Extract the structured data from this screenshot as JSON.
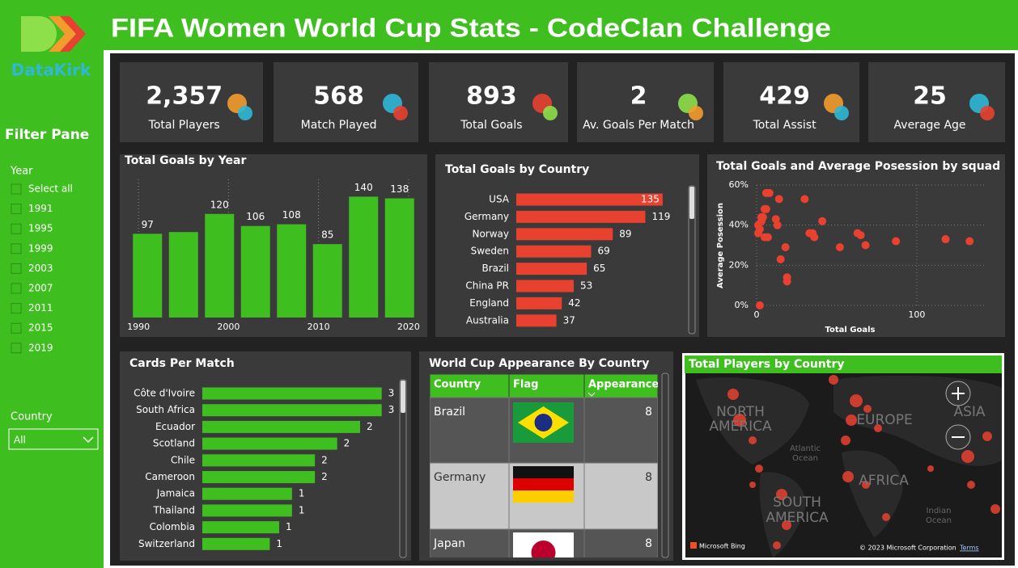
{
  "header": {
    "title": "FIFA Women World Cup Stats - CodeClan Challenge"
  },
  "sidebar": {
    "logo": "DataKirk",
    "filter_title": "Filter Pane",
    "year_label": "Year",
    "year_options": [
      "Select all",
      "1991",
      "1995",
      "1999",
      "2003",
      "2007",
      "2011",
      "2015",
      "2019"
    ],
    "country_label": "Country",
    "country_value": "All"
  },
  "kpis": [
    {
      "value": "2,357",
      "label": "Total Players"
    },
    {
      "value": "568",
      "label": "Match Played"
    },
    {
      "value": "893",
      "label": "Total Goals"
    },
    {
      "value": "2",
      "label": "Av. Goals Per Match"
    },
    {
      "value": "429",
      "label": "Total Assist"
    },
    {
      "value": "25",
      "label": "Average Age"
    }
  ],
  "chart_data": [
    {
      "type": "bar",
      "title": "Total Goals by Year",
      "x": [
        1991,
        1995,
        1999,
        2003,
        2007,
        2011,
        2015,
        2019
      ],
      "values": [
        97,
        99,
        120,
        106,
        108,
        85,
        140,
        138
      ],
      "value_labels": [
        "97",
        null,
        "120",
        "106",
        "108",
        "85",
        "140",
        "138"
      ],
      "xlim": [
        1989,
        2021
      ],
      "xticks": [
        1990,
        2000,
        2010,
        2020
      ],
      "ylim": [
        0,
        160
      ],
      "color": "#3fbe1f",
      "grid": true
    },
    {
      "type": "hbar",
      "title": "Total Goals by Country",
      "categories": [
        "USA",
        "Germany",
        "Norway",
        "Sweden",
        "Brazil",
        "China PR",
        "England",
        "Australia"
      ],
      "values": [
        135,
        119,
        89,
        69,
        65,
        53,
        42,
        37
      ],
      "xlim": [
        0,
        150
      ],
      "color": "#e8412f"
    },
    {
      "type": "scatter",
      "title": "Total Goals and Average Posession by squad",
      "x": [
        2,
        1,
        2,
        3,
        4,
        5,
        6,
        3,
        1,
        5,
        7,
        6,
        8,
        14,
        12,
        13,
        15,
        18,
        19,
        19,
        30,
        33,
        35,
        36,
        41,
        52,
        63,
        65,
        68,
        87,
        118,
        133
      ],
      "values": [
        0,
        36,
        38,
        42,
        44,
        48,
        48,
        44,
        40,
        34,
        34,
        56,
        56,
        53,
        43,
        40,
        23,
        29,
        14,
        12,
        53,
        36,
        36,
        34,
        42,
        29,
        36,
        35,
        30,
        32,
        33,
        32
      ],
      "xlim": [
        0,
        142
      ],
      "ylim": [
        0,
        60
      ],
      "xticks": [
        0,
        100
      ],
      "yticks": [
        {
          "value": 0,
          "label": "0%"
        },
        {
          "value": 20,
          "label": "20%"
        },
        {
          "value": 40,
          "label": "40%"
        },
        {
          "value": 60,
          "label": "60%"
        }
      ],
      "xlabel": "Total Goals",
      "ylabel": "Average Posession",
      "color": "#e8412f",
      "grid": true
    },
    {
      "type": "hbar",
      "title": "Cards Per Match",
      "categories": [
        "Côte d'Ivoire",
        "South Africa",
        "Ecuador",
        "Scotland",
        "Chile",
        "Cameroon",
        "Jamaica",
        "Thailand",
        "Colombia",
        "Switzerland"
      ],
      "values": [
        2.66,
        2.66,
        2.34,
        2.0,
        1.67,
        1.67,
        1.33,
        1.33,
        1.14,
        1.0
      ],
      "value_labels": [
        "3",
        "3",
        "2",
        "2",
        "2",
        "2",
        "1",
        "1",
        "1",
        "1"
      ],
      "xlim": [
        0,
        3
      ],
      "color": "#3fbe1f"
    }
  ],
  "table": {
    "title": "World Cup Appearance By Country",
    "columns": [
      "Country",
      "Flag",
      "Appearances"
    ],
    "rows": [
      [
        "Brazil",
        8
      ],
      [
        "Germany",
        8
      ],
      [
        "Japan",
        8
      ]
    ]
  },
  "map": {
    "title": "Total Players by Country",
    "labels": [
      "NORTH",
      "AMERICA",
      "EUROPE",
      "ASIA",
      "AFRICA",
      "SOUTH",
      "AMERICA",
      "Atlantic",
      "Ocean",
      "Indian",
      "Ocean"
    ],
    "brand": "Microsoft Bing",
    "copyright": "© 2023 Microsoft Corporation",
    "terms": "Terms"
  }
}
